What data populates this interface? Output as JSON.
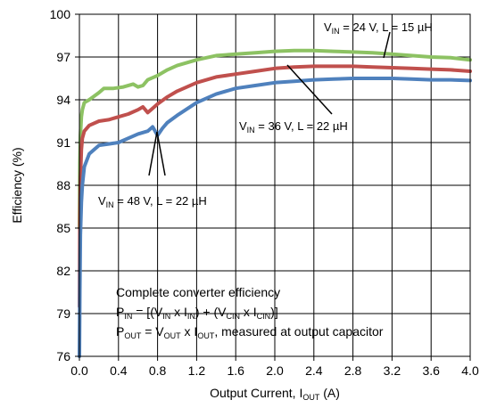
{
  "chart_data": {
    "type": "line",
    "title": "",
    "xlabel": {
      "main": "Output Current, I",
      "sub": "OUT",
      "tail": " (A)"
    },
    "ylabel": "Efficiency (%)",
    "xlim": [
      0,
      4.0
    ],
    "ylim": [
      76,
      100
    ],
    "grid": true,
    "x_ticks": [
      "0.0",
      "0.4",
      "0.8",
      "1.2",
      "1.6",
      "2.0",
      "2.4",
      "2.8",
      "3.2",
      "3.6",
      "4.0"
    ],
    "y_ticks": [
      "76",
      "79",
      "82",
      "85",
      "88",
      "91",
      "94",
      "97",
      "100"
    ],
    "series": [
      {
        "name": "VIN = 24 V, L = 15 µH",
        "color": "#8dc263",
        "points": [
          [
            0.0,
            85
          ],
          [
            0.005,
            89.5
          ],
          [
            0.01,
            91.5
          ],
          [
            0.02,
            92.8
          ],
          [
            0.03,
            93.3
          ],
          [
            0.05,
            93.8
          ],
          [
            0.1,
            94.0
          ],
          [
            0.2,
            94.5
          ],
          [
            0.25,
            94.8
          ],
          [
            0.35,
            94.8
          ],
          [
            0.45,
            94.9
          ],
          [
            0.55,
            95.1
          ],
          [
            0.6,
            94.9
          ],
          [
            0.65,
            95.0
          ],
          [
            0.7,
            95.4
          ],
          [
            0.8,
            95.7
          ],
          [
            0.9,
            96.1
          ],
          [
            1.0,
            96.4
          ],
          [
            1.2,
            96.8
          ],
          [
            1.4,
            97.1
          ],
          [
            1.6,
            97.2
          ],
          [
            1.8,
            97.3
          ],
          [
            2.0,
            97.4
          ],
          [
            2.2,
            97.45
          ],
          [
            2.4,
            97.45
          ],
          [
            2.6,
            97.4
          ],
          [
            2.8,
            97.35
          ],
          [
            3.0,
            97.3
          ],
          [
            3.2,
            97.2
          ],
          [
            3.4,
            97.1
          ],
          [
            3.6,
            97.0
          ],
          [
            3.8,
            96.95
          ],
          [
            4.0,
            96.8
          ]
        ],
        "label": {
          "main": "V",
          "sub": "IN",
          "tail": " = 24 V, L = 15 µH"
        }
      },
      {
        "name": "VIN = 36 V, L = 22 µH",
        "color": "#c0504d",
        "points": [
          [
            0.0,
            79.5
          ],
          [
            0.005,
            85.5
          ],
          [
            0.01,
            88.5
          ],
          [
            0.02,
            90.5
          ],
          [
            0.03,
            91.3
          ],
          [
            0.05,
            91.8
          ],
          [
            0.1,
            92.2
          ],
          [
            0.2,
            92.5
          ],
          [
            0.3,
            92.6
          ],
          [
            0.4,
            92.8
          ],
          [
            0.5,
            93.0
          ],
          [
            0.6,
            93.3
          ],
          [
            0.65,
            93.5
          ],
          [
            0.7,
            93.1
          ],
          [
            0.75,
            93.4
          ],
          [
            0.8,
            93.7
          ],
          [
            0.9,
            94.2
          ],
          [
            1.0,
            94.6
          ],
          [
            1.2,
            95.2
          ],
          [
            1.4,
            95.6
          ],
          [
            1.6,
            95.8
          ],
          [
            1.8,
            96.0
          ],
          [
            2.0,
            96.2
          ],
          [
            2.2,
            96.3
          ],
          [
            2.4,
            96.35
          ],
          [
            2.6,
            96.35
          ],
          [
            2.8,
            96.35
          ],
          [
            3.0,
            96.3
          ],
          [
            3.2,
            96.25
          ],
          [
            3.4,
            96.2
          ],
          [
            3.6,
            96.15
          ],
          [
            3.8,
            96.1
          ],
          [
            4.0,
            96.0
          ]
        ],
        "label": {
          "main": "V",
          "sub": "IN",
          "tail": " = 36 V, L = 22 µH"
        }
      },
      {
        "name": "VIN = 48 V, L = 22 µH",
        "color": "#4f81bd",
        "points": [
          [
            0.0,
            76
          ],
          [
            0.005,
            80.5
          ],
          [
            0.01,
            84.5
          ],
          [
            0.02,
            86.8
          ],
          [
            0.03,
            88.0
          ],
          [
            0.05,
            89.3
          ],
          [
            0.1,
            90.2
          ],
          [
            0.15,
            90.5
          ],
          [
            0.2,
            90.8
          ],
          [
            0.3,
            90.9
          ],
          [
            0.4,
            91.0
          ],
          [
            0.5,
            91.3
          ],
          [
            0.6,
            91.6
          ],
          [
            0.7,
            91.8
          ],
          [
            0.75,
            92.1
          ],
          [
            0.8,
            91.5
          ],
          [
            0.85,
            92.0
          ],
          [
            0.9,
            92.4
          ],
          [
            1.0,
            92.9
          ],
          [
            1.2,
            93.8
          ],
          [
            1.4,
            94.4
          ],
          [
            1.6,
            94.8
          ],
          [
            1.8,
            95.0
          ],
          [
            2.0,
            95.2
          ],
          [
            2.2,
            95.3
          ],
          [
            2.4,
            95.4
          ],
          [
            2.6,
            95.45
          ],
          [
            2.8,
            95.5
          ],
          [
            3.0,
            95.5
          ],
          [
            3.2,
            95.5
          ],
          [
            3.4,
            95.45
          ],
          [
            3.6,
            95.4
          ],
          [
            3.8,
            95.4
          ],
          [
            4.0,
            95.35
          ]
        ],
        "label": {
          "main": "V",
          "sub": "IN",
          "tail": " = 48 V, L = 22 µH"
        }
      }
    ],
    "notes": {
      "line1": "Complete converter efficiency",
      "line2": [
        {
          "t": "P",
          "s": false
        },
        {
          "t": "IN",
          "s": true
        },
        {
          "t": " = [(V",
          "s": false
        },
        {
          "t": "IN",
          "s": true
        },
        {
          "t": " x I",
          "s": false
        },
        {
          "t": "IN",
          "s": true
        },
        {
          "t": ") + (V",
          "s": false
        },
        {
          "t": "CIN",
          "s": true
        },
        {
          "t": " x I",
          "s": false
        },
        {
          "t": "CIN",
          "s": true
        },
        {
          "t": ")]",
          "s": false
        }
      ],
      "line3": [
        {
          "t": "P",
          "s": false
        },
        {
          "t": "OUT",
          "s": true
        },
        {
          "t": " = V",
          "s": false
        },
        {
          "t": "OUT",
          "s": true
        },
        {
          "t": " x I",
          "s": false
        },
        {
          "t": "OUT",
          "s": true
        },
        {
          "t": ", measured at output capacitor",
          "s": false
        }
      ]
    }
  }
}
